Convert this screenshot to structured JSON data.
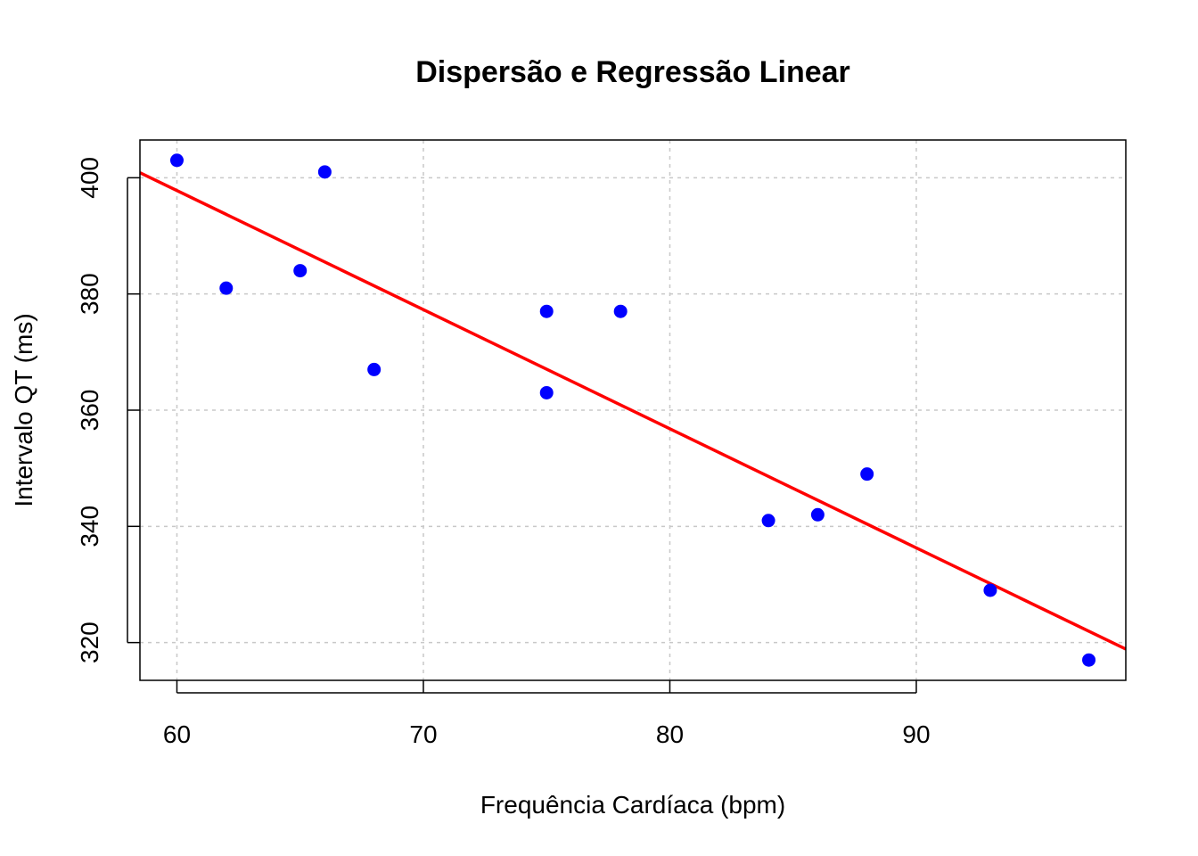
{
  "chart_data": {
    "type": "scatter",
    "title": "Dispersão e Regressão Linear",
    "xlabel": "Frequência Cardíaca (bpm)",
    "ylabel": "Intervalo QT (ms)",
    "xlim": [
      58.5,
      98.5
    ],
    "ylim": [
      313.5,
      406.5
    ],
    "x_ticks": [
      60,
      70,
      80,
      90
    ],
    "y_ticks": [
      320,
      340,
      360,
      380,
      400
    ],
    "grid": true,
    "point_color": "#0000ff",
    "line_color": "#ff0000",
    "points": [
      {
        "x": 60,
        "y": 403
      },
      {
        "x": 62,
        "y": 381
      },
      {
        "x": 65,
        "y": 384
      },
      {
        "x": 66,
        "y": 401
      },
      {
        "x": 68,
        "y": 367
      },
      {
        "x": 75,
        "y": 377
      },
      {
        "x": 75,
        "y": 363
      },
      {
        "x": 78,
        "y": 377
      },
      {
        "x": 84,
        "y": 341
      },
      {
        "x": 86,
        "y": 342
      },
      {
        "x": 88,
        "y": 349
      },
      {
        "x": 93,
        "y": 329
      },
      {
        "x": 97,
        "y": 317
      }
    ],
    "regression": {
      "intercept": 520.8,
      "slope": -2.05
    }
  }
}
